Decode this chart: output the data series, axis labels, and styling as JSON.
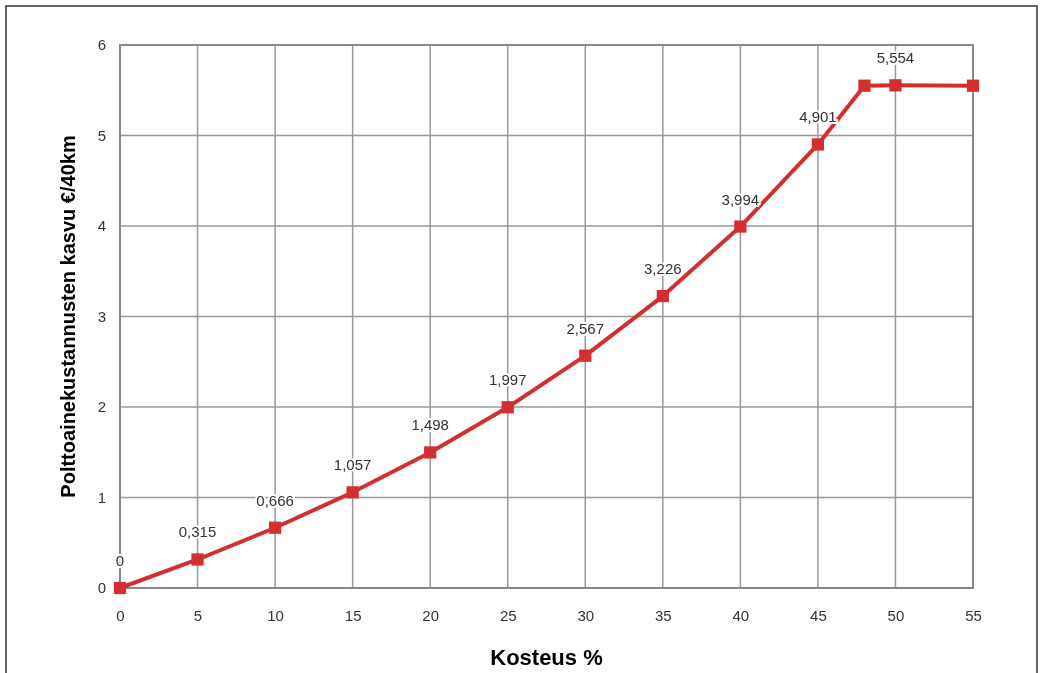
{
  "chart_data": {
    "type": "line",
    "xlabel": "Kosteus %",
    "ylabel": "Polttoainekustannusten kasvu €/40km",
    "x": [
      0,
      5,
      10,
      15,
      20,
      25,
      30,
      35,
      40,
      45,
      48,
      50,
      55
    ],
    "series": [
      {
        "color": "#d32f2f",
        "values": [
          0,
          0.315,
          0.666,
          1.057,
          1.498,
          1.997,
          2.567,
          3.226,
          3.994,
          4.901,
          5.55,
          5.554,
          5.55
        ],
        "value_labels": [
          "0",
          "0,315",
          "0,666",
          "1,057",
          "1,498",
          "1,997",
          "2,567",
          "3,226",
          "3,994",
          "4,901",
          null,
          "5,554",
          null
        ]
      }
    ],
    "xlim": [
      0,
      55
    ],
    "xticks": [
      0,
      5,
      10,
      15,
      20,
      25,
      30,
      35,
      40,
      45,
      50,
      55
    ],
    "ylim": [
      0,
      6
    ],
    "yticks": [
      0,
      1,
      2,
      3,
      4,
      5,
      6
    ],
    "grid": true,
    "marker": "square",
    "line_style": "solid"
  }
}
